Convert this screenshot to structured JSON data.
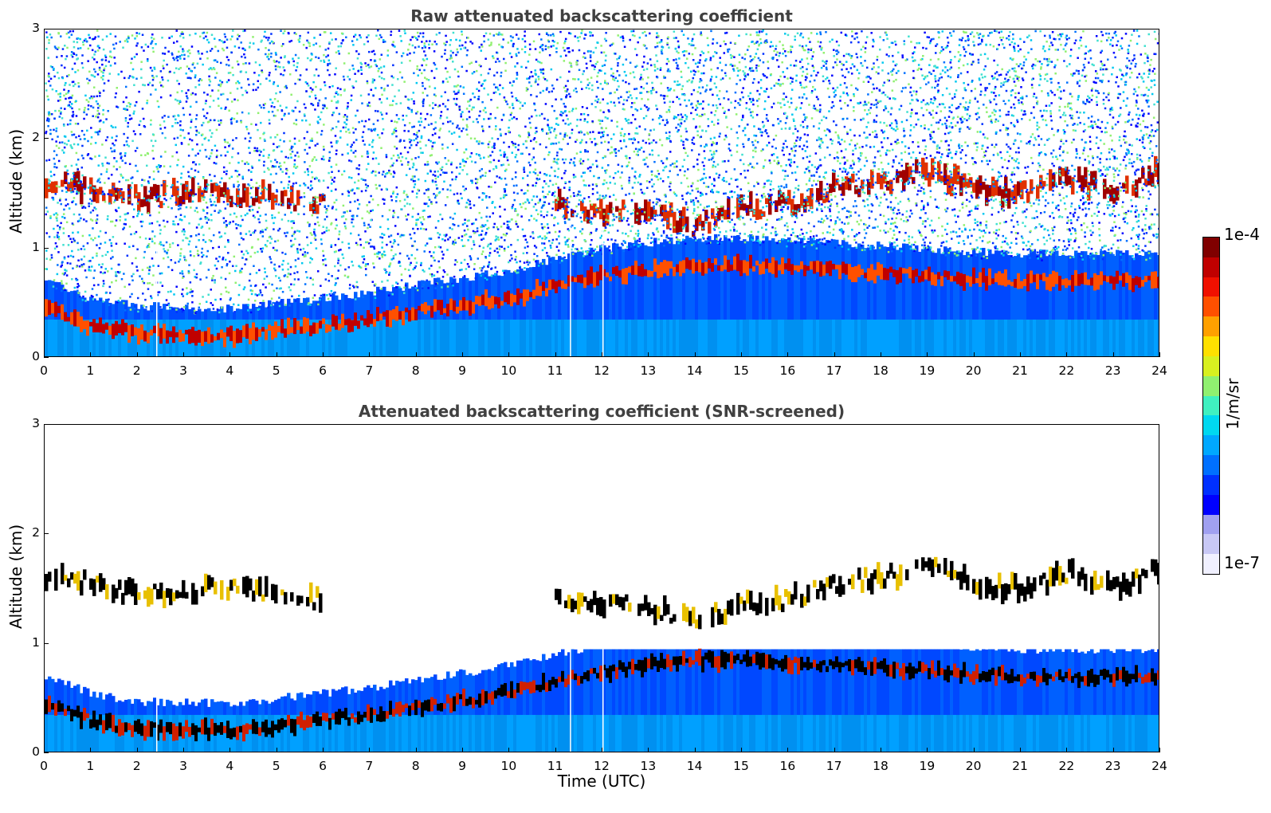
{
  "chart_data": [
    {
      "type": "heatmap",
      "title": "Raw attenuated backscattering coefficient",
      "xlabel": "",
      "ylabel": "Altitude (km)",
      "xlim": [
        0,
        24
      ],
      "ylim": [
        0,
        3
      ],
      "x_ticks": [
        "0",
        "1",
        "2",
        "3",
        "4",
        "5",
        "6",
        "7",
        "8",
        "9",
        "10",
        "11",
        "12",
        "13",
        "14",
        "15",
        "16",
        "17",
        "18",
        "19",
        "20",
        "21",
        "22",
        "23",
        "24"
      ],
      "y_ticks": [
        "0",
        "1",
        "2",
        "3"
      ],
      "screened": false,
      "layers": {
        "aerosol_top": [
          [
            0,
            0.45
          ],
          [
            1,
            0.3
          ],
          [
            2,
            0.22
          ],
          [
            3,
            0.22
          ],
          [
            4,
            0.2
          ],
          [
            5,
            0.25
          ],
          [
            6,
            0.3
          ],
          [
            7,
            0.35
          ],
          [
            8,
            0.42
          ],
          [
            9,
            0.48
          ],
          [
            10,
            0.55
          ],
          [
            11,
            0.65
          ],
          [
            12,
            0.75
          ],
          [
            13,
            0.8
          ],
          [
            14,
            0.85
          ],
          [
            15,
            0.85
          ],
          [
            16,
            0.82
          ],
          [
            17,
            0.8
          ],
          [
            18,
            0.78
          ],
          [
            19,
            0.75
          ],
          [
            20,
            0.72
          ],
          [
            21,
            0.7
          ],
          [
            22,
            0.7
          ],
          [
            23,
            0.7
          ],
          [
            24,
            0.7
          ]
        ],
        "cloud_layer": [
          [
            0,
            1.6
          ],
          [
            1,
            1.55
          ],
          [
            2,
            1.45
          ],
          [
            3,
            1.5
          ],
          [
            4,
            1.5
          ],
          [
            5,
            1.45
          ],
          [
            6,
            1.4
          ],
          [
            11,
            1.4
          ],
          [
            12,
            1.35
          ],
          [
            13,
            1.35
          ],
          [
            14,
            1.2
          ],
          [
            15,
            1.35
          ],
          [
            16,
            1.4
          ],
          [
            17,
            1.55
          ],
          [
            18,
            1.6
          ],
          [
            19,
            1.7
          ],
          [
            20,
            1.55
          ],
          [
            21,
            1.5
          ],
          [
            22,
            1.65
          ],
          [
            23,
            1.5
          ],
          [
            24,
            1.7
          ]
        ]
      }
    },
    {
      "type": "heatmap",
      "title": "Attenuated backscattering coefficient (SNR-screened)",
      "xlabel": "Time (UTC)",
      "ylabel": "Altitude (km)",
      "xlim": [
        0,
        24
      ],
      "ylim": [
        0,
        3
      ],
      "x_ticks": [
        "0",
        "1",
        "2",
        "3",
        "4",
        "5",
        "6",
        "7",
        "8",
        "9",
        "10",
        "11",
        "12",
        "13",
        "14",
        "15",
        "16",
        "17",
        "18",
        "19",
        "20",
        "21",
        "22",
        "23",
        "24"
      ],
      "y_ticks": [
        "0",
        "1",
        "2",
        "3"
      ],
      "screened": true
    }
  ],
  "colorbar": {
    "label": "1/m/sr",
    "max_label": "1e-4",
    "min_label": "1e-7",
    "colors": [
      "#f0f0ff",
      "#c8c8f5",
      "#a0a0f0",
      "#0000ff",
      "#0030ff",
      "#0070ff",
      "#00a8ff",
      "#00d8f0",
      "#40f0c0",
      "#90f070",
      "#d8f020",
      "#ffe000",
      "#ffa000",
      "#ff5000",
      "#f01000",
      "#c00000",
      "#800000"
    ]
  }
}
